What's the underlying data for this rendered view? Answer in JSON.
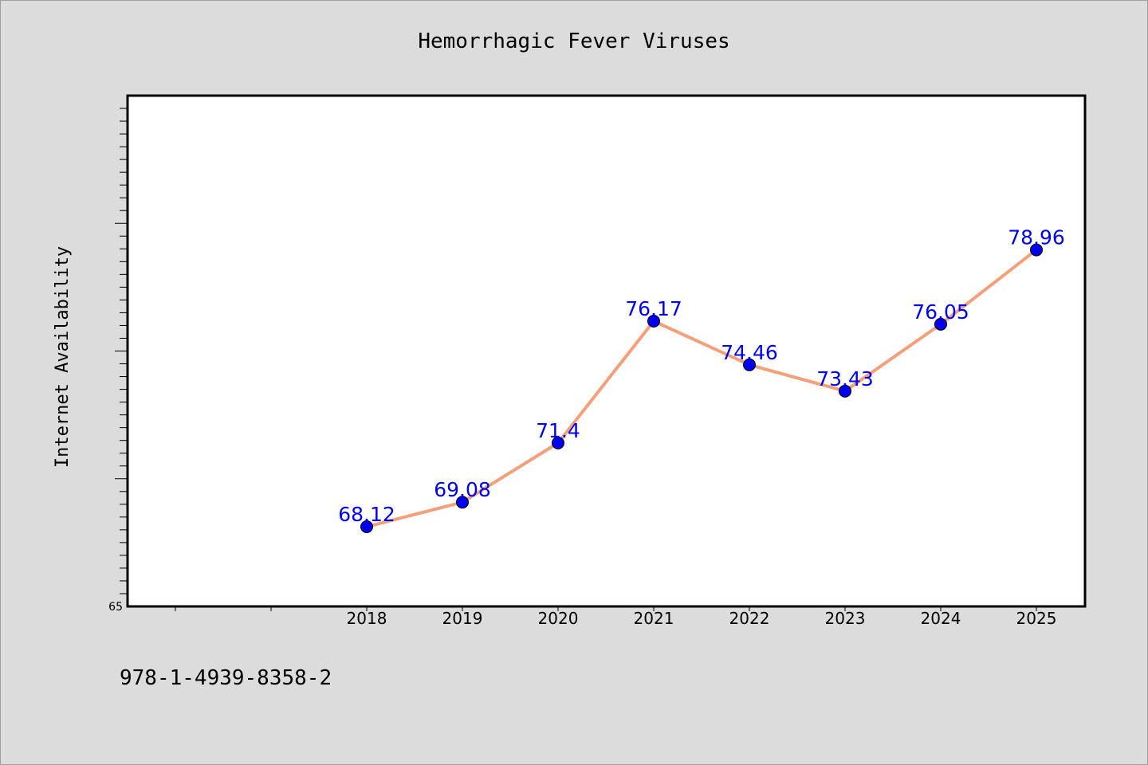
{
  "chart_data": {
    "type": "line",
    "title": "Hemorrhagic Fever Viruses",
    "ylabel": "Internet Availability",
    "xlabel": "",
    "categories": [
      "2018",
      "2019",
      "2020",
      "2021",
      "2022",
      "2023",
      "2024",
      "2025"
    ],
    "series": [
      {
        "values": [
          68.12,
          69.08,
          71.4,
          76.17,
          74.46,
          73.43,
          76.05,
          78.96
        ],
        "line_color": "#f4a07a",
        "marker_color": "#0000ee"
      }
    ],
    "ylim": [
      65,
      85
    ],
    "y_tick_labels": [
      "65"
    ],
    "grid": false,
    "legend": false,
    "label_color": "#0000ee"
  },
  "footer": {
    "text": "978-1-4939-8358-2"
  }
}
